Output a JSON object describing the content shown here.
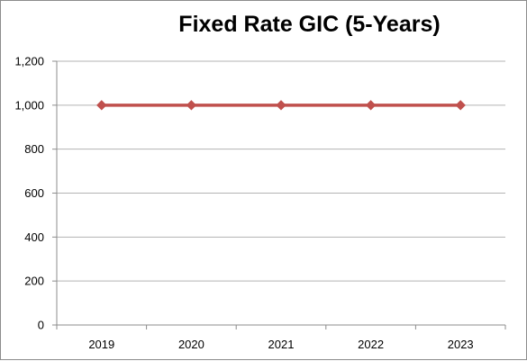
{
  "chart_data": {
    "type": "line",
    "title": "Fixed Rate GIC (5-Years)",
    "xlabel": "",
    "ylabel": "",
    "categories": [
      "2019",
      "2020",
      "2021",
      "2022",
      "2023"
    ],
    "series": [
      {
        "values": [
          1000,
          1000,
          1000,
          1000,
          1000
        ],
        "color": "#c0504d",
        "marker": "diamond"
      }
    ],
    "ylim": [
      0,
      1200
    ],
    "y_ticks": [
      0,
      200,
      400,
      600,
      800,
      1000,
      1200
    ],
    "y_tick_labels": [
      "0",
      "200",
      "400",
      "600",
      "800",
      "1,000",
      "1,200"
    ],
    "grid": "horizontal",
    "legend": "none",
    "colors": {
      "gridline": "#b3b3b3",
      "axis": "#8c8c8c"
    }
  }
}
